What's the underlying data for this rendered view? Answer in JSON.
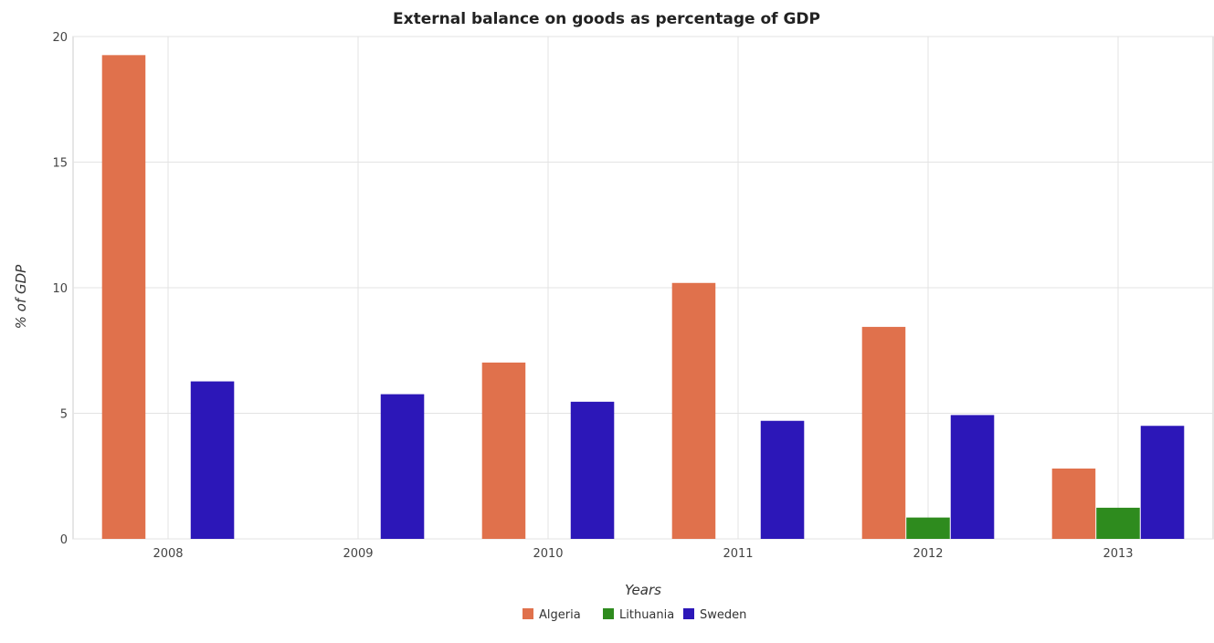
{
  "chart_data": {
    "type": "bar",
    "title": "External balance on goods as percentage of GDP",
    "xlabel": "Years",
    "ylabel": "% of GDP",
    "categories": [
      "2008",
      "2009",
      "2010",
      "2011",
      "2012",
      "2013"
    ],
    "series": [
      {
        "name": "Algeria",
        "color": "#e0714c",
        "values": [
          19.26,
          0,
          7.02,
          10.19,
          8.44,
          2.8
        ]
      },
      {
        "name": "Lithuania",
        "color": "#2e8b1e",
        "values": [
          0,
          0,
          0,
          0,
          0.85,
          1.24
        ]
      },
      {
        "name": "Sweden",
        "color": "#2c17b8",
        "values": [
          6.27,
          5.76,
          5.46,
          4.7,
          4.93,
          4.5
        ]
      }
    ],
    "ylim": [
      0,
      20
    ],
    "yticks": [
      "0",
      "5",
      "10",
      "15",
      "20"
    ],
    "grid": true,
    "legend_position": "bottom-center"
  }
}
